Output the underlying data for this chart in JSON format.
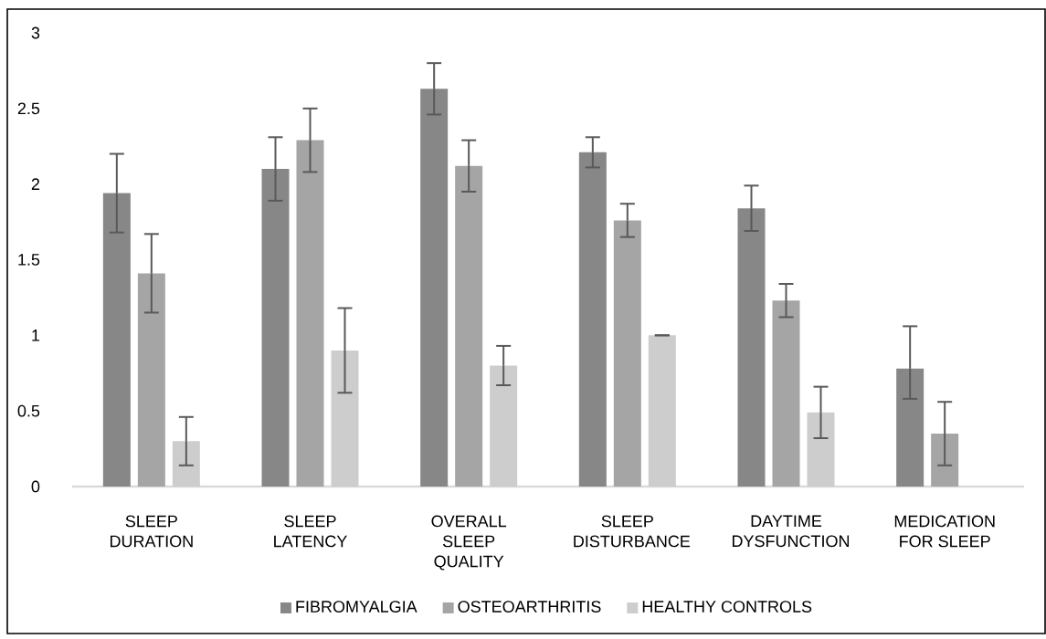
{
  "chart_data": {
    "type": "bar",
    "categories": [
      "SLEEP DURATION",
      "SLEEP LATENCY",
      "OVERALL SLEEP QUALITY",
      "SLEEP DISTURBANCE",
      "DAYTIME DYSFUNCTION",
      "MEDICATION FOR SLEEP"
    ],
    "series": [
      {
        "name": "FIBROMYALGIA",
        "color": "#878787",
        "values": [
          1.94,
          2.1,
          2.63,
          2.21,
          1.84,
          0.78
        ],
        "errors": [
          0.26,
          0.21,
          0.17,
          0.1,
          0.15,
          [
            0.58,
            1.06
          ]
        ]
      },
      {
        "name": "OSTEOARTHRITIS",
        "color": "#a5a5a5",
        "values": [
          1.41,
          2.29,
          2.12,
          1.76,
          1.23,
          0.35
        ],
        "errors": [
          0.26,
          0.21,
          0.17,
          0.11,
          0.11,
          0.21
        ]
      },
      {
        "name": "HEALTHY CONTROLS",
        "color": "#cdcdcd",
        "values": [
          0.3,
          0.9,
          0.8,
          1.0,
          0.49,
          null
        ],
        "errors": [
          0.16,
          0.28,
          0.13,
          0,
          0.17,
          null
        ]
      }
    ],
    "ylim": [
      0,
      3
    ],
    "yticks": [
      0,
      0.5,
      1,
      1.5,
      2,
      2.5,
      3
    ],
    "grid": false,
    "legend": "bottom"
  }
}
